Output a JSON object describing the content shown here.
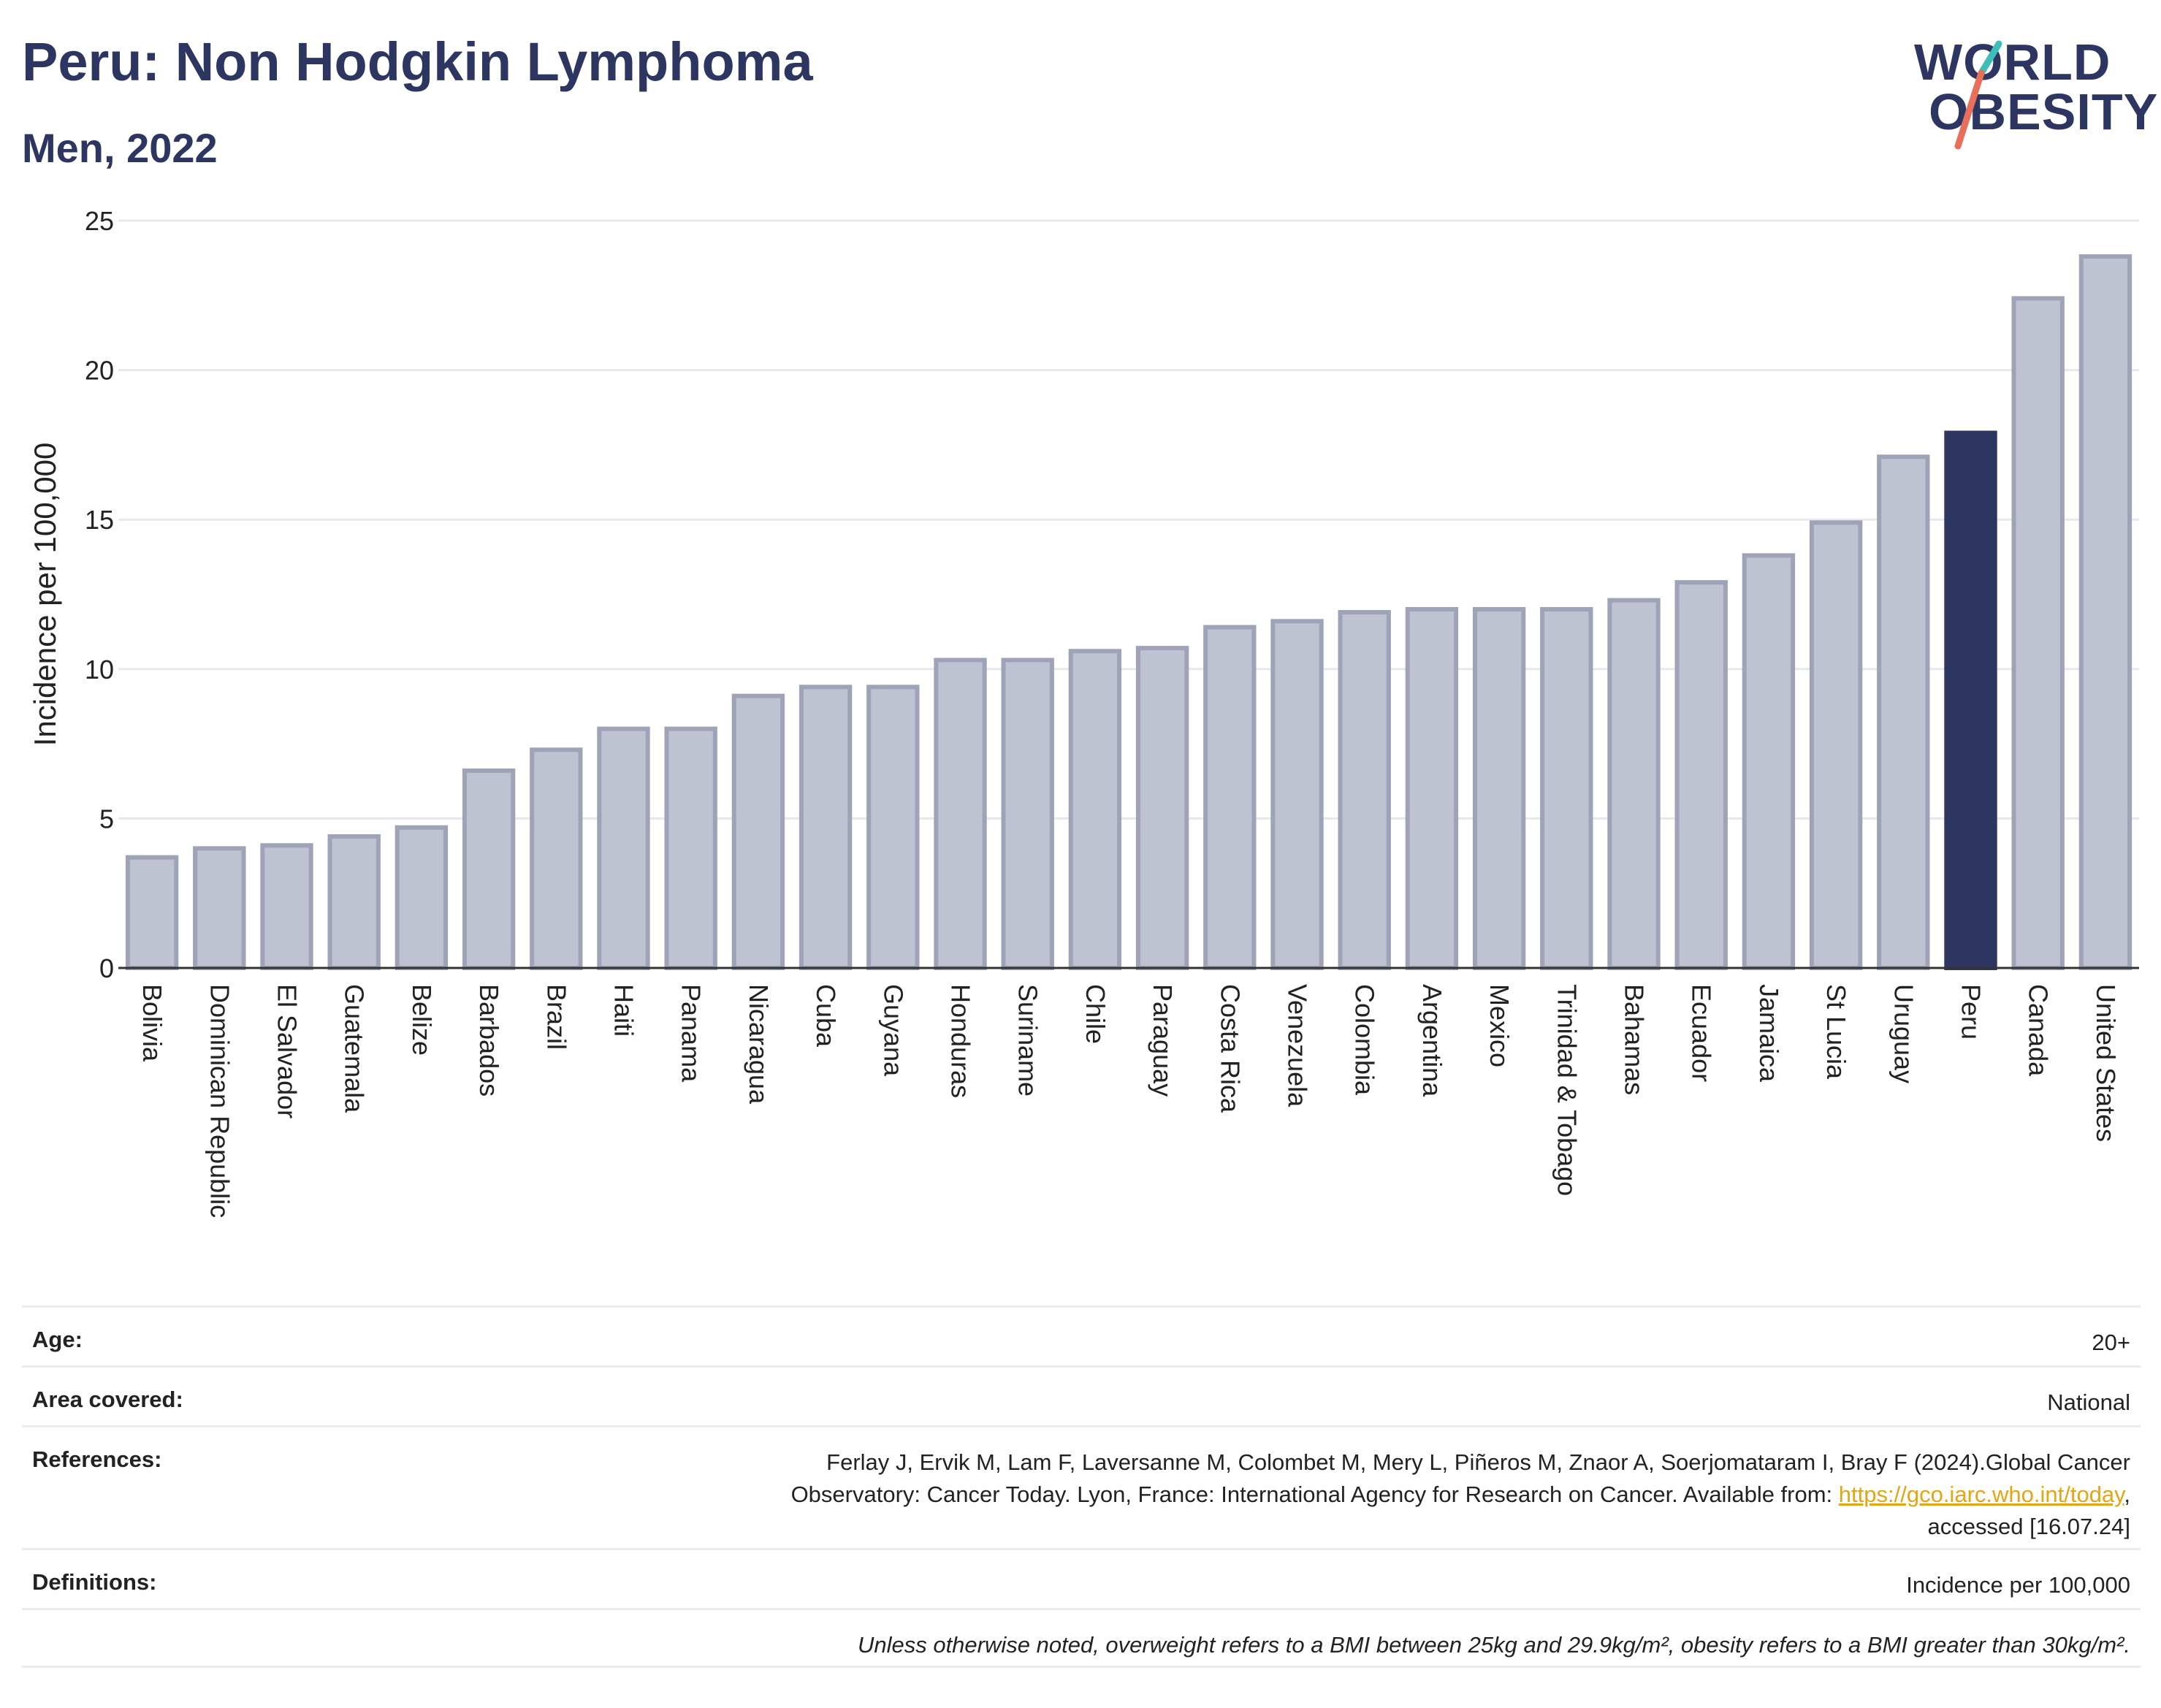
{
  "header": {
    "title": "Peru: Non Hodgkin Lymphoma",
    "subtitle": "Men, 2022"
  },
  "logo": {
    "line1": "WORLD",
    "line2": "OBESITY",
    "slash_colors": [
      "#3bbfb8",
      "#e8705a"
    ]
  },
  "chart_data": {
    "type": "bar",
    "ylabel": "Incidence per 100,000",
    "ylim": [
      0,
      25
    ],
    "yticks": [
      0,
      5,
      10,
      15,
      20,
      25
    ],
    "grid": true,
    "categories": [
      "Bolivia",
      "Dominican Republic",
      "El Salvador",
      "Guatemala",
      "Belize",
      "Barbados",
      "Brazil",
      "Haiti",
      "Panama",
      "Nicaragua",
      "Cuba",
      "Guyana",
      "Honduras",
      "Suriname",
      "Chile",
      "Paraguay",
      "Costa Rica",
      "Venezuela",
      "Colombia",
      "Argentina",
      "Mexico",
      "Trinidad & Tobago",
      "Bahamas",
      "Ecuador",
      "Jamaica",
      "St Lucia",
      "Uruguay",
      "Peru",
      "Canada",
      "United States"
    ],
    "values": [
      3.7,
      4.0,
      4.1,
      4.4,
      4.7,
      6.6,
      7.3,
      8.0,
      8.0,
      9.1,
      9.4,
      9.4,
      10.3,
      10.3,
      10.6,
      10.7,
      11.4,
      11.6,
      11.9,
      12.0,
      12.0,
      12.0,
      12.3,
      12.9,
      13.8,
      14.9,
      17.1,
      17.9,
      22.4,
      23.8
    ],
    "highlight": "Peru",
    "colors": {
      "bar": "#bfc2d0",
      "bar_border": "#9ea3b8",
      "highlight": "#2d3561",
      "grid": "#e6e8ee",
      "axis": "#333333"
    }
  },
  "info": {
    "age_label": "Age:",
    "age_value": "20+",
    "area_label": "Area covered:",
    "area_value": "National",
    "refs_label": "References:",
    "refs_line1": "Ferlay J, Ervik M, Lam F, Laversanne M, Colombet M, Mery L, Piñeros M, Znaor A, Soerjomataram I, Bray F (2024).Global Cancer",
    "refs_line2_pre": "Observatory: Cancer Today. Lyon, France: International Agency for Research on Cancer. Available from: ",
    "refs_link": "https://gco.iarc.who.int/today",
    "refs_line2_post": ",",
    "refs_line3": "accessed [16.07.24]",
    "defs_label": "Definitions:",
    "defs_value": "Incidence per 100,000",
    "note": "Unless otherwise noted, overweight refers to a BMI between 25kg and 29.9kg/m², obesity refers to a BMI greater than 30kg/m²."
  }
}
